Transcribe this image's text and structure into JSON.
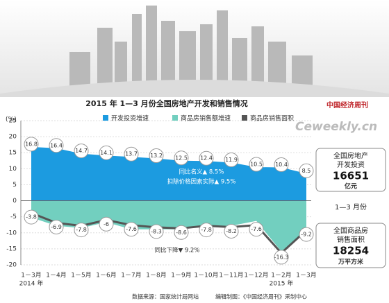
{
  "chart_data": {
    "type": "area-line",
    "title": "2015 年 1—3 月份全国房地产开发和销售情况",
    "y_label": "(%)",
    "categories": [
      "1－3月",
      "1－4月",
      "1－5月",
      "1－6月",
      "1－7月",
      "1－8月",
      "1－9月",
      "1－10月",
      "1－11月",
      "1－12月",
      "1－2月",
      "1－3月"
    ],
    "year_labels": [
      "2014 年",
      null,
      null,
      null,
      null,
      null,
      null,
      null,
      null,
      null,
      "2015 年",
      null
    ],
    "series": [
      {
        "name": "开发投资增速",
        "color": "#1c9be0",
        "kind": "area",
        "values": [
          16.8,
          16.4,
          14.7,
          14.1,
          13.7,
          13.2,
          12.5,
          12.4,
          11.9,
          10.5,
          10.4,
          8.5
        ]
      },
      {
        "name": "商品房销售额增速",
        "color": "#72cfbf",
        "kind": "area",
        "values": [
          -5.2,
          -7.8,
          -8.5,
          -6.7,
          -8.9,
          -8.9,
          -8.9,
          -7.9,
          -7.8,
          -6.3,
          -15.8,
          -9.3
        ]
      },
      {
        "name": "商品房销售面积",
        "color": "#555555",
        "kind": "line",
        "values": [
          -3.8,
          -6.9,
          -7.8,
          -6.0,
          -7.6,
          -8.3,
          -8.6,
          -7.8,
          -8.2,
          -7.6,
          -16.3,
          -9.2
        ]
      }
    ],
    "ylim": [
      -20,
      25
    ],
    "yticks": [
      -20,
      -15,
      -10,
      -5,
      0,
      5,
      10,
      15,
      20,
      25
    ],
    "annotations": [
      "同比名义▲ 8.5%",
      "扣除价格因素实际▲ 9.5%",
      "同比下降▼ 9.2%"
    ],
    "side_panel": {
      "investment": {
        "label_1": "全国房地产",
        "label_2": "开发投资",
        "value": "16651",
        "unit": "亿元"
      },
      "period": "1—3 月份",
      "sales": {
        "label_1": "全国商品房",
        "label_2": "销售面积",
        "value": "18254",
        "unit": "万平方米"
      }
    },
    "logo": {
      "name": "中国经济周刊",
      "site": "Ceweekly.cn"
    },
    "source": "数据来源：国家统计局网站",
    "credit": "编辑制图：《中国经济周刊》采制中心"
  }
}
